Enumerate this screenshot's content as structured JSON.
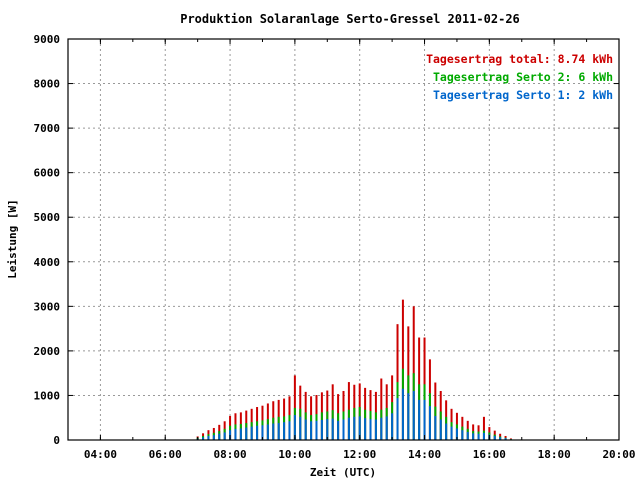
{
  "chart_data": {
    "type": "bar",
    "title": "Produktion Solaranlage Serto-Gressel 2011-02-26",
    "xlabel": "Zeit (UTC)",
    "ylabel": "Leistung [W]",
    "ylim": [
      0,
      9000
    ],
    "xlim_hours": [
      3.0,
      20.0
    ],
    "x_tick_labels": [
      "04:00",
      "06:00",
      "08:00",
      "10:00",
      "12:00",
      "14:00",
      "16:00",
      "18:00",
      "20:00"
    ],
    "y_tick_labels": [
      "0",
      "1000",
      "2000",
      "3000",
      "4000",
      "5000",
      "6000",
      "7000",
      "8000",
      "9000"
    ],
    "grid": true,
    "legend_position": "top-right",
    "legend": [
      {
        "label": "Tagesertrag total: 8.74 kWh",
        "color": "#cc0000"
      },
      {
        "label": "Tagesertrag Serto 2: 6 kWh",
        "color": "#00aa00"
      },
      {
        "label": "Tagesertrag Serto 1: 2 kWh",
        "color": "#0066cc"
      }
    ],
    "colors": {
      "total": "#cc0000",
      "serto2": "#00aa00",
      "serto1": "#0066cc"
    },
    "x": [
      "07:00",
      "07:10",
      "07:20",
      "07:30",
      "07:40",
      "07:50",
      "08:00",
      "08:10",
      "08:20",
      "08:30",
      "08:40",
      "08:50",
      "09:00",
      "09:10",
      "09:20",
      "09:30",
      "09:40",
      "09:50",
      "10:00",
      "10:10",
      "10:20",
      "10:30",
      "10:40",
      "10:50",
      "11:00",
      "11:10",
      "11:20",
      "11:30",
      "11:40",
      "11:50",
      "12:00",
      "12:10",
      "12:20",
      "12:30",
      "12:40",
      "12:50",
      "13:00",
      "13:10",
      "13:20",
      "13:30",
      "13:40",
      "13:50",
      "14:00",
      "14:10",
      "14:20",
      "14:30",
      "14:40",
      "14:50",
      "15:00",
      "15:10",
      "15:20",
      "15:30",
      "15:40",
      "15:50",
      "16:00",
      "16:10",
      "16:20",
      "16:30",
      "16:40"
    ],
    "series": [
      {
        "name": "Tagesertrag Serto 1: 2 kWh",
        "values": [
          30,
          60,
          90,
          110,
          140,
          170,
          220,
          250,
          260,
          280,
          300,
          320,
          330,
          350,
          370,
          380,
          400,
          420,
          560,
          520,
          460,
          420,
          430,
          450,
          470,
          480,
          430,
          460,
          500,
          520,
          530,
          490,
          470,
          460,
          500,
          530,
          600,
          940,
          1150,
          1050,
          1100,
          900,
          900,
          760,
          540,
          460,
          370,
          300,
          260,
          220,
          180,
          150,
          140,
          160,
          120,
          90,
          60,
          40,
          15
        ]
      },
      {
        "name": "Tagesertrag Serto 2: 6 kWh",
        "values": [
          50,
          90,
          130,
          160,
          200,
          250,
          320,
          350,
          360,
          380,
          400,
          420,
          440,
          470,
          500,
          520,
          530,
          560,
          720,
          700,
          620,
          560,
          580,
          620,
          640,
          670,
          600,
          640,
          680,
          720,
          740,
          680,
          650,
          620,
          680,
          720,
          850,
          1300,
          1600,
          1450,
          1500,
          1250,
          1250,
          1050,
          750,
          640,
          520,
          400,
          350,
          300,
          250,
          200,
          190,
          210,
          170,
          120,
          80,
          50,
          20
        ]
      },
      {
        "name": "Tagesertrag total: 8.74 kWh",
        "values": [
          80,
          150,
          220,
          270,
          340,
          420,
          540,
          600,
          620,
          660,
          700,
          740,
          770,
          820,
          870,
          900,
          930,
          980,
          1450,
          1220,
          1080,
          980,
          1010,
          1070,
          1110,
          1250,
          1030,
          1100,
          1300,
          1240,
          1270,
          1170,
          1120,
          1080,
          1380,
          1250,
          1450,
          2600,
          3150,
          2550,
          3000,
          2300,
          2300,
          1810,
          1290,
          1100,
          890,
          700,
          610,
          520,
          430,
          350,
          330,
          520,
          290,
          210,
          140,
          90,
          35
        ]
      }
    ]
  }
}
